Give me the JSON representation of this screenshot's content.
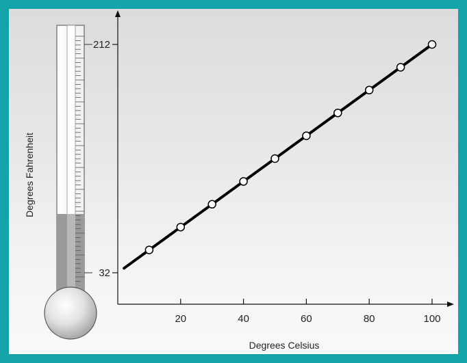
{
  "colors": {
    "frame": "#14a3a8",
    "line": "#000000",
    "thermometer_fill": "#9a9a9a"
  },
  "chart_data": {
    "type": "line",
    "xlabel": "Degrees Celsius",
    "ylabel": "Degrees Fahrenheit",
    "x_ticks": [
      20,
      40,
      60,
      80,
      100
    ],
    "y_ticks": [
      32,
      212
    ],
    "xlim": [
      0,
      100
    ],
    "ylim": [
      32,
      212
    ],
    "series": [
      {
        "line": {
          "x": [
            2,
            100
          ],
          "y": [
            35.6,
            212
          ]
        },
        "points": {
          "x": [
            10,
            20,
            30,
            40,
            50,
            60,
            70,
            80,
            90,
            100
          ],
          "y": [
            50,
            68,
            86,
            104,
            122,
            140,
            158,
            176,
            194,
            212
          ]
        }
      }
    ],
    "thermometer_level_fraction": 0.31
  }
}
